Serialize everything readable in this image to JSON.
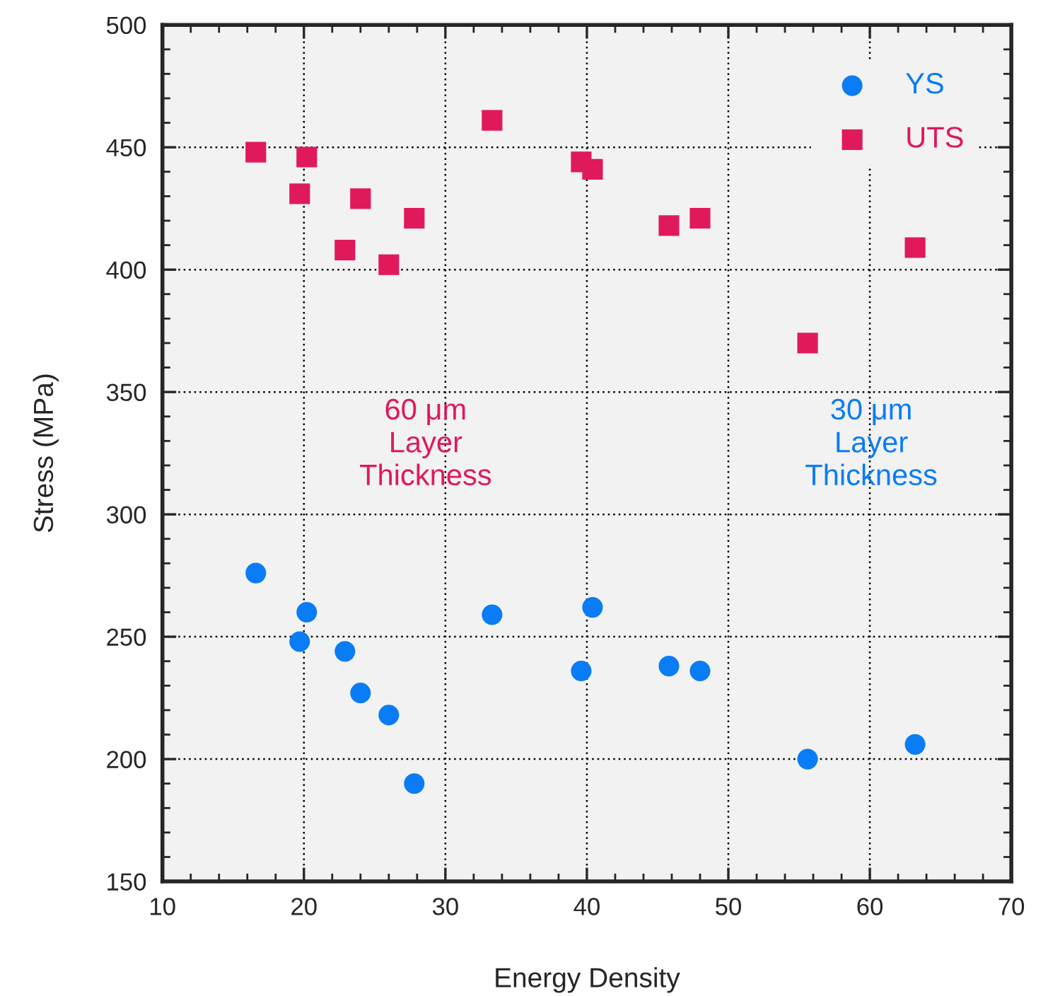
{
  "chart_data": {
    "type": "scatter",
    "xlabel": "Energy Density",
    "ylabel": "Stress (MPa)",
    "xlim": [
      10,
      70
    ],
    "xticks": [
      10,
      20,
      30,
      40,
      50,
      60,
      70
    ],
    "ylim": [
      150,
      500
    ],
    "yticks": [
      150,
      200,
      250,
      300,
      350,
      400,
      450,
      500
    ],
    "grid": true,
    "legend": "top right",
    "series": [
      {
        "name": "YS",
        "color": "#0a7cf5",
        "marker": "circle",
        "x": [
          16.6,
          20.2,
          19.7,
          22.9,
          24.0,
          26.0,
          27.8,
          33.3,
          40.4,
          39.6,
          45.8,
          48.0,
          55.6,
          63.2
        ],
        "values": [
          276,
          260,
          248,
          244,
          227,
          218,
          190,
          259,
          262,
          236,
          238,
          236,
          200,
          206
        ]
      },
      {
        "name": "UTS",
        "color": "#e0195a",
        "marker": "square",
        "x": [
          16.6,
          20.2,
          19.7,
          24.0,
          27.8,
          22.9,
          26.0,
          33.3,
          39.6,
          40.4,
          45.8,
          48.0,
          55.6,
          63.2
        ],
        "values": [
          448,
          446,
          431,
          429,
          421,
          408,
          402,
          461,
          444,
          441,
          418,
          421,
          370,
          409
        ]
      }
    ],
    "annotations": [
      "60 μm\nLayer\nThickness",
      "30 μm\nLayer\nThickness"
    ]
  }
}
